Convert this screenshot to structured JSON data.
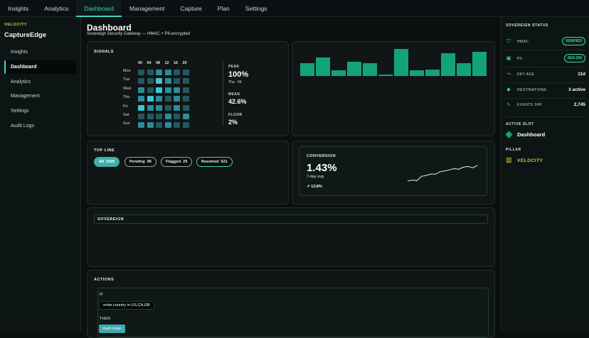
{
  "nav": {
    "tabs": [
      "Insights",
      "Analytics",
      "Dashboard",
      "Management",
      "Capture",
      "Plan",
      "Settings"
    ],
    "active": "Dashboard"
  },
  "sidebar": {
    "kicker": "VELOCITY",
    "brand": "CaptureEdge",
    "items": [
      "Insights",
      "Dashboard",
      "Analytics",
      "Management",
      "Settings",
      "Audit Logs"
    ],
    "active": "Dashboard"
  },
  "header": {
    "title": "Dashboard",
    "subtitle": "Sovereign Security Gateway — HMAC + PII-encrypted"
  },
  "signals": {
    "label": "SIGNALS",
    "columns": [
      "00",
      "04",
      "08",
      "12",
      "16",
      "20"
    ],
    "rows": [
      "Mon",
      "Tue",
      "Wed",
      "Thu",
      "Fri",
      "Sat",
      "Sun"
    ],
    "stats": {
      "peak_label": "PEAK",
      "peak_value": "100%",
      "peak_sub": "Thu · 04",
      "mean_label": "MEAN",
      "mean_value": "42.6%",
      "floor_label": "FLOOR",
      "floor_value": "2%"
    }
  },
  "bar_chart": {
    "values": [
      0.38,
      0.56,
      0.18,
      0.42,
      0.38,
      0.04,
      0.8,
      0.16,
      0.2,
      0.68,
      0.38,
      0.72
    ]
  },
  "top_line": {
    "label": "TOP LINE",
    "pills": [
      {
        "label": "All",
        "count": "3305"
      },
      {
        "label": "Pending",
        "count": "96"
      },
      {
        "label": "Flagged",
        "count": "29"
      },
      {
        "label": "Resolved",
        "count": "521"
      }
    ]
  },
  "conversion": {
    "label": "CONVERSION",
    "value": "1.43%",
    "sub": "7-day avg",
    "delta": "↗ 13.8%",
    "sparkline": [
      3.0,
      3.6,
      3.3,
      5.8,
      6.3,
      7.2,
      7.1,
      8.5,
      9.0,
      9.6,
      10.3,
      10.0,
      11.2,
      11.6,
      10.8,
      12.2
    ]
  },
  "sovereign": {
    "label": "SOVEREIGN"
  },
  "actions": {
    "label": "ACTIONS",
    "if_label": "IF",
    "condition": "order.country in US,CA,GB",
    "then_label": "THEN",
    "action": "mark clean"
  },
  "right": {
    "status_head": "SOVEREIGN STATUS",
    "rows": [
      {
        "key": "HMAC",
        "value": "VERIFIED",
        "badge": true,
        "icon": "shield-icon"
      },
      {
        "key": "PII",
        "value": "AES-256",
        "badge": true,
        "icon": "lock-icon"
      },
      {
        "key": "KEY AGE",
        "value": "11d",
        "badge": false,
        "icon": "key-icon"
      },
      {
        "key": "DESTINATIONS",
        "value": "3 active",
        "badge": false,
        "icon": "destination-icon"
      },
      {
        "key": "EVENTS 24H",
        "value": "2,745",
        "badge": false,
        "icon": "activity-icon"
      }
    ],
    "slot_head": "ACTIVE SLOT",
    "slot_value": "Dashboard",
    "pillar_head": "PILLAR",
    "pillar_value": "VELOCITY",
    "colors": {
      "accent": "#3fd6c4",
      "green": "#13a37a",
      "yellow": "#e5c93a"
    }
  }
}
